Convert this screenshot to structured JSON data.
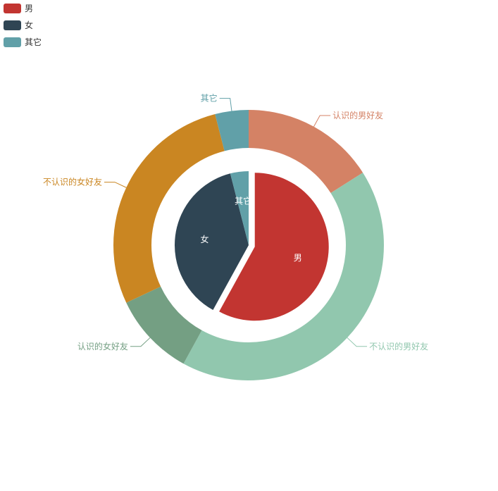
{
  "chart_data": {
    "type": "pie",
    "title": "",
    "legend": {
      "placement": "top-left",
      "items": [
        {
          "name": "男",
          "color": "#c23531"
        },
        {
          "name": "女",
          "color": "#2f4554"
        },
        {
          "name": "其它",
          "color": "#61a0a8"
        }
      ]
    },
    "series": [
      {
        "name": "",
        "kind": "pie-inner",
        "start_angle_deg": 90,
        "data": [
          {
            "name": "男",
            "value": 58,
            "color": "#c23531",
            "selected": true
          },
          {
            "name": "女",
            "value": 38,
            "color": "#2f4554",
            "selected": false
          },
          {
            "name": "其它",
            "value": 4,
            "color": "#61a0a8",
            "selected": false
          }
        ]
      },
      {
        "name": "",
        "kind": "ring-outer",
        "start_angle_deg": 90,
        "data": [
          {
            "name": "认识的男好友",
            "value": 16,
            "color": "#d48265"
          },
          {
            "name": "不认识的男好友",
            "value": 42,
            "color": "#91c7ae"
          },
          {
            "name": "认识的女好友",
            "value": 10,
            "color": "#749f83"
          },
          {
            "name": "不认识的女好友",
            "value": 28,
            "color": "#ca8622"
          },
          {
            "name": "其它",
            "value": 4,
            "color": "#61a0a8"
          }
        ]
      }
    ]
  }
}
